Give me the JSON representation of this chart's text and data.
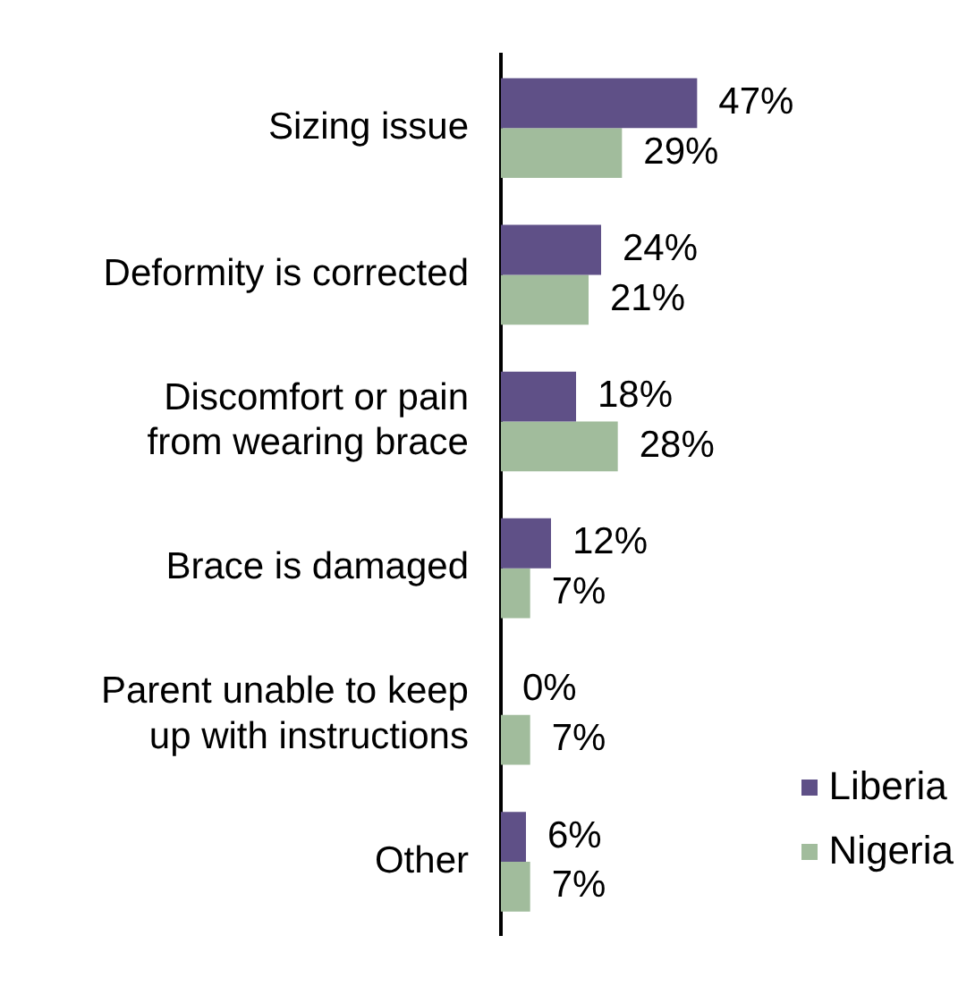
{
  "chart_data": {
    "type": "bar",
    "orientation": "horizontal",
    "categories": [
      "Sizing issue",
      "Deformity is corrected",
      "Discomfort or pain\nfrom wearing brace",
      "Brace is damaged",
      "Parent unable to keep\nup with instructions",
      "Other"
    ],
    "series": [
      {
        "name": "Liberia",
        "color": "#5f5087",
        "values": [
          47,
          24,
          18,
          12,
          0,
          6
        ],
        "value_labels": [
          "47%",
          "24%",
          "18%",
          "12%",
          "0%",
          "6%"
        ]
      },
      {
        "name": "Nigeria",
        "color": "#a1bc9c",
        "values": [
          29,
          21,
          28,
          7,
          7,
          7
        ],
        "value_labels": [
          "29%",
          "21%",
          "28%",
          "7%",
          "7%",
          "7%"
        ]
      }
    ],
    "tick_labels": "y",
    "legend": "bottom right"
  }
}
